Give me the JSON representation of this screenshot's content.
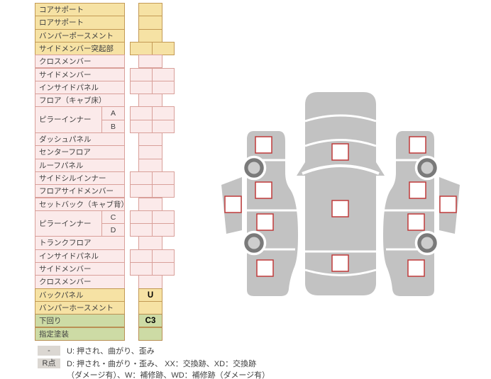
{
  "colors": {
    "yellow_bg": "#F6E2A4",
    "pink_bg": "#FBEAEA",
    "green_bg": "#CDDBA5",
    "marker_border": "#C03A3A",
    "car_body_gray": "#C2C2C2",
    "wheel_dark": "#7A7A7A",
    "legend_badge_bg": "#DBD7D2"
  },
  "table": {
    "rows": [
      {
        "label": "コアサポート",
        "color": "yellow",
        "layout": "single",
        "value": ""
      },
      {
        "label": "ロアサポート",
        "color": "yellow",
        "layout": "single",
        "value": ""
      },
      {
        "label": "バンパーポースメント",
        "color": "yellow",
        "layout": "single",
        "value": ""
      },
      {
        "label": "サイドメンバー突起部",
        "color": "yellow",
        "layout": "double",
        "values": [
          "",
          ""
        ]
      },
      {
        "label": "クロスメンバー",
        "color": "pink",
        "layout": "single",
        "value": ""
      },
      {
        "label": "サイドメンバー",
        "color": "pink",
        "layout": "double",
        "values": [
          "",
          ""
        ]
      },
      {
        "label": "インサイドパネル",
        "color": "pink",
        "layout": "double",
        "values": [
          "",
          ""
        ]
      },
      {
        "label": "フロア（キャブ床）",
        "color": "pink",
        "layout": "single",
        "value": ""
      },
      {
        "label": "ピラーインナー",
        "color": "pink",
        "subs": [
          {
            "sub": "A",
            "layout": "double",
            "values": [
              "",
              ""
            ]
          },
          {
            "sub": "B",
            "layout": "double",
            "values": [
              "",
              ""
            ]
          }
        ]
      },
      {
        "label": "ダッシュパネル",
        "color": "pink",
        "layout": "single",
        "value": ""
      },
      {
        "label": "センターフロア",
        "color": "pink",
        "layout": "single",
        "value": ""
      },
      {
        "label": "ルーフパネル",
        "color": "pink",
        "layout": "single",
        "value": ""
      },
      {
        "label": "サイドシルインナー",
        "color": "pink",
        "layout": "double",
        "values": [
          "",
          ""
        ]
      },
      {
        "label": "フロアサイドメンバー",
        "color": "pink",
        "layout": "double",
        "values": [
          "",
          ""
        ]
      },
      {
        "label": "セットバック（キャブ背）",
        "color": "pink",
        "layout": "single",
        "value": ""
      },
      {
        "label": "ピラーインナー",
        "color": "pink",
        "subs": [
          {
            "sub": "C",
            "layout": "double",
            "values": [
              "",
              ""
            ]
          },
          {
            "sub": "D",
            "layout": "double",
            "values": [
              "",
              ""
            ]
          }
        ]
      },
      {
        "label": "トランクフロア",
        "color": "pink",
        "layout": "single",
        "value": ""
      },
      {
        "label": "インサイドパネル",
        "color": "pink",
        "layout": "double",
        "values": [
          "",
          ""
        ]
      },
      {
        "label": "サイドメンバー",
        "color": "pink",
        "layout": "double",
        "values": [
          "",
          ""
        ]
      },
      {
        "label": "クロスメンバー",
        "color": "pink",
        "layout": "single",
        "value": ""
      },
      {
        "label": "バックパネル",
        "color": "yellow",
        "layout": "single",
        "value": "U"
      },
      {
        "label": "バンパーホースメント",
        "color": "yellow",
        "layout": "single",
        "value": ""
      },
      {
        "label": "下回り",
        "color": "green",
        "layout": "single",
        "value": "C3"
      },
      {
        "label": "指定塗装",
        "color": "green",
        "layout": "single",
        "value": ""
      }
    ]
  },
  "legend": {
    "items": [
      {
        "badge": "-",
        "lines": [
          "U: 押され、曲がり、歪み"
        ]
      },
      {
        "badge": "R点",
        "lines": [
          "D: 押され・曲がり・歪み、 XX：交換跡、XD：交換跡",
          "（ダメージ有）、W：補修跡、WD：補修跡（ダメージ有）"
        ]
      }
    ]
  }
}
